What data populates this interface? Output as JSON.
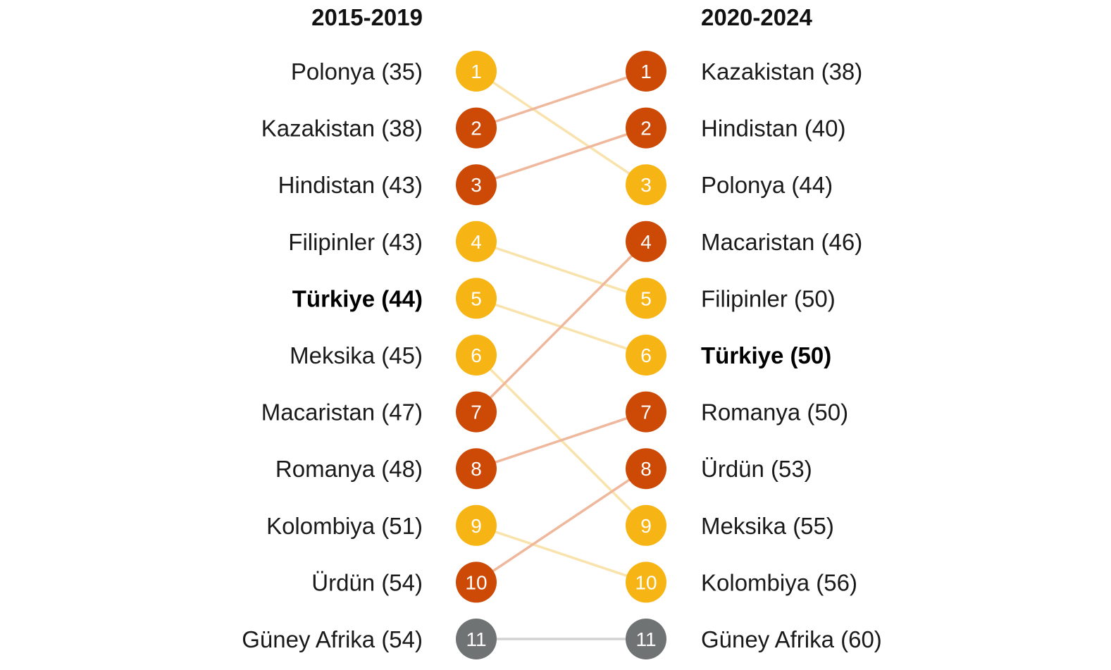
{
  "chart_data": {
    "type": "slope",
    "periods": [
      "2015-2019",
      "2020-2024"
    ],
    "left": [
      {
        "rank": 1,
        "country": "Polonya",
        "value": 35
      },
      {
        "rank": 2,
        "country": "Kazakistan",
        "value": 38
      },
      {
        "rank": 3,
        "country": "Hindistan",
        "value": 43
      },
      {
        "rank": 4,
        "country": "Filipinler",
        "value": 43
      },
      {
        "rank": 5,
        "country": "Türkiye",
        "value": 44
      },
      {
        "rank": 6,
        "country": "Meksika",
        "value": 45
      },
      {
        "rank": 7,
        "country": "Macaristan",
        "value": 47
      },
      {
        "rank": 8,
        "country": "Romanya",
        "value": 48
      },
      {
        "rank": 9,
        "country": "Kolombiya",
        "value": 51
      },
      {
        "rank": 10,
        "country": "Ürdün",
        "value": 54
      },
      {
        "rank": 11,
        "country": "Güney Afrika",
        "value": 54
      }
    ],
    "right": [
      {
        "rank": 1,
        "country": "Kazakistan",
        "value": 38
      },
      {
        "rank": 2,
        "country": "Hindistan",
        "value": 40
      },
      {
        "rank": 3,
        "country": "Polonya",
        "value": 44
      },
      {
        "rank": 4,
        "country": "Macaristan",
        "value": 46
      },
      {
        "rank": 5,
        "country": "Filipinler",
        "value": 50
      },
      {
        "rank": 6,
        "country": "Türkiye",
        "value": 50
      },
      {
        "rank": 7,
        "country": "Romanya",
        "value": 50
      },
      {
        "rank": 8,
        "country": "Ürdün",
        "value": 53
      },
      {
        "rank": 9,
        "country": "Meksika",
        "value": 55
      },
      {
        "rank": 10,
        "country": "Kolombiya",
        "value": 56
      },
      {
        "rank": 11,
        "country": "Güney Afrika",
        "value": 60
      }
    ],
    "highlight": "Türkiye",
    "colors": {
      "improved": "#cc4a06",
      "declined": "#f7b515",
      "neutral": "#707374",
      "improved_line": "#efb79c",
      "declined_line": "#f9e3ac",
      "neutral_line": "#d2d2d2"
    }
  }
}
